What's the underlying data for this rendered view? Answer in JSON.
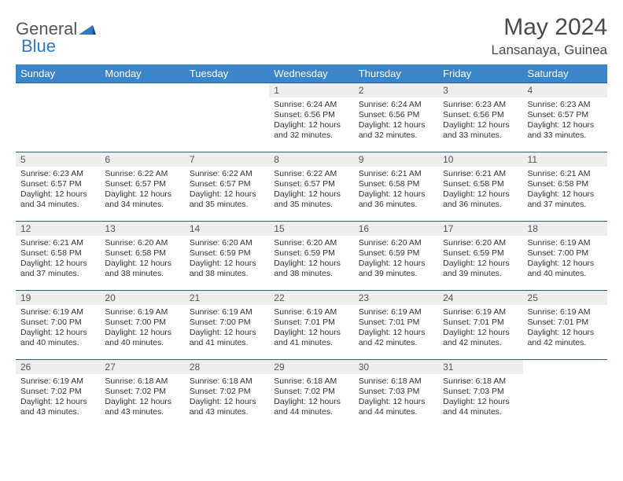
{
  "logo": {
    "text1": "General",
    "text2": "Blue"
  },
  "title": "May 2024",
  "location": "Lansanaya, Guinea",
  "header_bg": "#3b86c8",
  "days_of_week": [
    "Sunday",
    "Monday",
    "Tuesday",
    "Wednesday",
    "Thursday",
    "Friday",
    "Saturday"
  ],
  "weeks": [
    [
      null,
      null,
      null,
      {
        "n": "1",
        "sunrise": "6:24 AM",
        "sunset": "6:56 PM",
        "daylight": "12 hours and 32 minutes."
      },
      {
        "n": "2",
        "sunrise": "6:24 AM",
        "sunset": "6:56 PM",
        "daylight": "12 hours and 32 minutes."
      },
      {
        "n": "3",
        "sunrise": "6:23 AM",
        "sunset": "6:56 PM",
        "daylight": "12 hours and 33 minutes."
      },
      {
        "n": "4",
        "sunrise": "6:23 AM",
        "sunset": "6:57 PM",
        "daylight": "12 hours and 33 minutes."
      }
    ],
    [
      {
        "n": "5",
        "sunrise": "6:23 AM",
        "sunset": "6:57 PM",
        "daylight": "12 hours and 34 minutes."
      },
      {
        "n": "6",
        "sunrise": "6:22 AM",
        "sunset": "6:57 PM",
        "daylight": "12 hours and 34 minutes."
      },
      {
        "n": "7",
        "sunrise": "6:22 AM",
        "sunset": "6:57 PM",
        "daylight": "12 hours and 35 minutes."
      },
      {
        "n": "8",
        "sunrise": "6:22 AM",
        "sunset": "6:57 PM",
        "daylight": "12 hours and 35 minutes."
      },
      {
        "n": "9",
        "sunrise": "6:21 AM",
        "sunset": "6:58 PM",
        "daylight": "12 hours and 36 minutes."
      },
      {
        "n": "10",
        "sunrise": "6:21 AM",
        "sunset": "6:58 PM",
        "daylight": "12 hours and 36 minutes."
      },
      {
        "n": "11",
        "sunrise": "6:21 AM",
        "sunset": "6:58 PM",
        "daylight": "12 hours and 37 minutes."
      }
    ],
    [
      {
        "n": "12",
        "sunrise": "6:21 AM",
        "sunset": "6:58 PM",
        "daylight": "12 hours and 37 minutes."
      },
      {
        "n": "13",
        "sunrise": "6:20 AM",
        "sunset": "6:58 PM",
        "daylight": "12 hours and 38 minutes."
      },
      {
        "n": "14",
        "sunrise": "6:20 AM",
        "sunset": "6:59 PM",
        "daylight": "12 hours and 38 minutes."
      },
      {
        "n": "15",
        "sunrise": "6:20 AM",
        "sunset": "6:59 PM",
        "daylight": "12 hours and 38 minutes."
      },
      {
        "n": "16",
        "sunrise": "6:20 AM",
        "sunset": "6:59 PM",
        "daylight": "12 hours and 39 minutes."
      },
      {
        "n": "17",
        "sunrise": "6:20 AM",
        "sunset": "6:59 PM",
        "daylight": "12 hours and 39 minutes."
      },
      {
        "n": "18",
        "sunrise": "6:19 AM",
        "sunset": "7:00 PM",
        "daylight": "12 hours and 40 minutes."
      }
    ],
    [
      {
        "n": "19",
        "sunrise": "6:19 AM",
        "sunset": "7:00 PM",
        "daylight": "12 hours and 40 minutes."
      },
      {
        "n": "20",
        "sunrise": "6:19 AM",
        "sunset": "7:00 PM",
        "daylight": "12 hours and 40 minutes."
      },
      {
        "n": "21",
        "sunrise": "6:19 AM",
        "sunset": "7:00 PM",
        "daylight": "12 hours and 41 minutes."
      },
      {
        "n": "22",
        "sunrise": "6:19 AM",
        "sunset": "7:01 PM",
        "daylight": "12 hours and 41 minutes."
      },
      {
        "n": "23",
        "sunrise": "6:19 AM",
        "sunset": "7:01 PM",
        "daylight": "12 hours and 42 minutes."
      },
      {
        "n": "24",
        "sunrise": "6:19 AM",
        "sunset": "7:01 PM",
        "daylight": "12 hours and 42 minutes."
      },
      {
        "n": "25",
        "sunrise": "6:19 AM",
        "sunset": "7:01 PM",
        "daylight": "12 hours and 42 minutes."
      }
    ],
    [
      {
        "n": "26",
        "sunrise": "6:19 AM",
        "sunset": "7:02 PM",
        "daylight": "12 hours and 43 minutes."
      },
      {
        "n": "27",
        "sunrise": "6:18 AM",
        "sunset": "7:02 PM",
        "daylight": "12 hours and 43 minutes."
      },
      {
        "n": "28",
        "sunrise": "6:18 AM",
        "sunset": "7:02 PM",
        "daylight": "12 hours and 43 minutes."
      },
      {
        "n": "29",
        "sunrise": "6:18 AM",
        "sunset": "7:02 PM",
        "daylight": "12 hours and 44 minutes."
      },
      {
        "n": "30",
        "sunrise": "6:18 AM",
        "sunset": "7:03 PM",
        "daylight": "12 hours and 44 minutes."
      },
      {
        "n": "31",
        "sunrise": "6:18 AM",
        "sunset": "7:03 PM",
        "daylight": "12 hours and 44 minutes."
      },
      null
    ]
  ],
  "labels": {
    "sunrise": "Sunrise: ",
    "sunset": "Sunset: ",
    "daylight": "Daylight: "
  }
}
